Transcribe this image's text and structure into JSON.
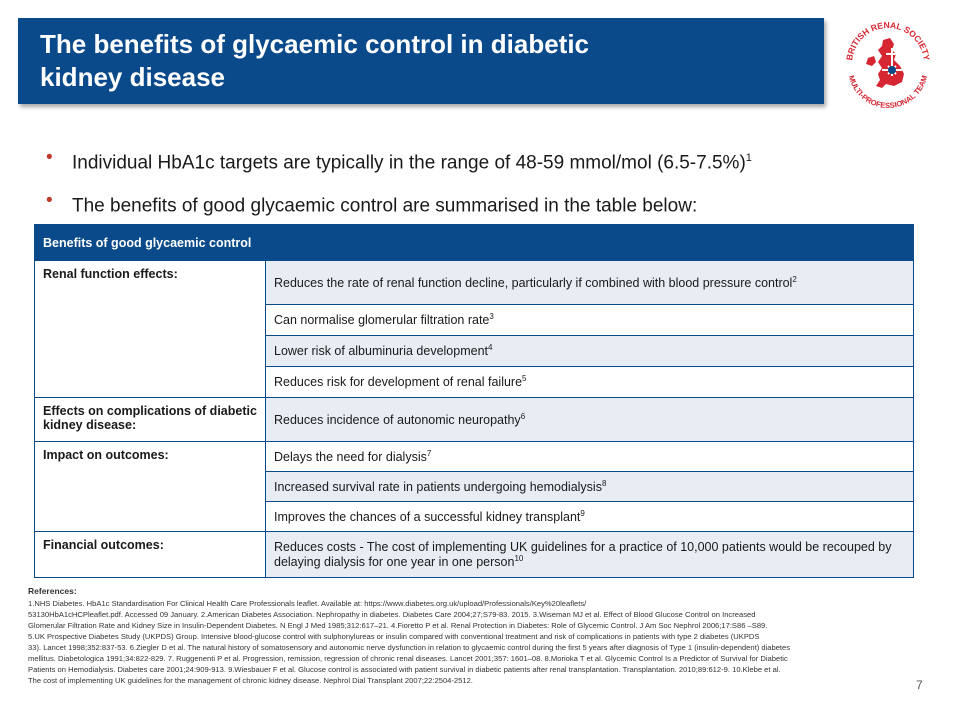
{
  "title": {
    "line1": "The benefits of glycaemic control in diabetic",
    "line2": "kidney disease"
  },
  "logo": {
    "text_top": "BRITISH RENAL SOCIETY",
    "text_bottom": "MULTI-PROFESSIONAL TEAM",
    "icon": "uk-map-cross-logo",
    "color": "#d62631"
  },
  "bullets": [
    {
      "text": "Individual HbA1c targets are typically in the range of 48-59 mmol/mol (6.5-7.5%)",
      "sup": "1"
    },
    {
      "text": "The benefits of good glycaemic control are summarised in the table below:",
      "sup": ""
    }
  ],
  "table": {
    "header": "Benefits of good glycaemic control",
    "rows": [
      {
        "category": "Renal function effects:",
        "benefit": "Reduces the rate of renal function decline, particularly if combined with blood pressure control",
        "sup": "2"
      },
      {
        "category": "",
        "benefit": "Can normalise glomerular filtration rate",
        "sup": "3"
      },
      {
        "category": "",
        "benefit": "Lower risk of albuminuria development",
        "sup": "4"
      },
      {
        "category": "",
        "benefit": "Reduces risk for development of renal failure",
        "sup": "5"
      },
      {
        "category": "Effects on complications of diabetic kidney disease:",
        "benefit": "Reduces incidence of autonomic neuropathy",
        "sup": "6"
      },
      {
        "category": "Impact on outcomes:",
        "benefit": "Delays the need for dialysis",
        "sup": "7"
      },
      {
        "category": "",
        "benefit": "Increased survival rate in patients undergoing hemodialysis",
        "sup": "8"
      },
      {
        "category": "",
        "benefit": "Improves the chances of a successful kidney transplant",
        "sup": "9"
      },
      {
        "category": "Financial outcomes:",
        "benefit": "Reduces costs - The cost of implementing UK guidelines for a practice of 10,000 patients would be recouped by delaying dialysis for one year in one person",
        "sup": "10"
      }
    ]
  },
  "references": {
    "title": "References:",
    "lines": [
      "1.NHS Diabetes. HbA1c Standardisation For Clinical Health Care Professionals leaflet. Available at: https://www.diabetes.org.uk/upload/Professionals/Key%20leaflets/",
      "53130HbA1cHCPleaflet.pdf. Accessed 09 January. 2.American Diabetes Association. Nephropathy in diabetes. Diabetes Care 2004;27;S79-83. 2015. 3.Wiseman MJ et al. Effect of Blood Glucose Control on Increased",
      "Glomerular Filtration Rate and Kidney Size in Insulin-Dependent Diabetes. N Engl J Med 1985;312:617–21. 4.Fioretto P et al. Renal Protection in Diabetes: Role of Glycemic Control. J Am Soc Nephrol 2006;17:S86 –S89.",
      "5.UK Prospective Diabetes Study (UKPDS) Group. Intensive blood-glucose control with sulphonylureas or insulin compared with conventional treatment and risk of complications in patients with type 2 diabetes (UKPDS",
      "33). Lancet 1998;352:837-53. 6.Ziegler D et al. The natural history of somatosensory and autonomic nerve dysfunction in relation to glycaemic control during the first 5 years after diagnosis of Type 1 (insulin-dependent) diabetes",
      "mellitus. Diabetologica 1991;34:822-829. 7. Ruggenenti P et al. Progression, remission, regression of chronic renal diseases. Lancet 2001;357: 1601–08. 8.Morioka T et al. Glycemic Control Is a Predictor of Survival for Diabetic",
      "Patients on Hemodialysis. Diabetes care 2001;24:909-913. 9.Wiesbauer F et al. Glucose control is associated with patient survival in diabetic patients after renal transplantation. Transplantation. 2010;89:612-9. 10.Klebe et al.",
      "The cost of implementing UK guidelines for the management of chronic kidney disease. Nephrol Dial Transplant 2007;22:2504-2512."
    ]
  },
  "page_number": "7",
  "colors": {
    "brand_blue": "#0a4a8a",
    "bullet_red": "#c0392b",
    "row_shade": "#e8edf4"
  }
}
